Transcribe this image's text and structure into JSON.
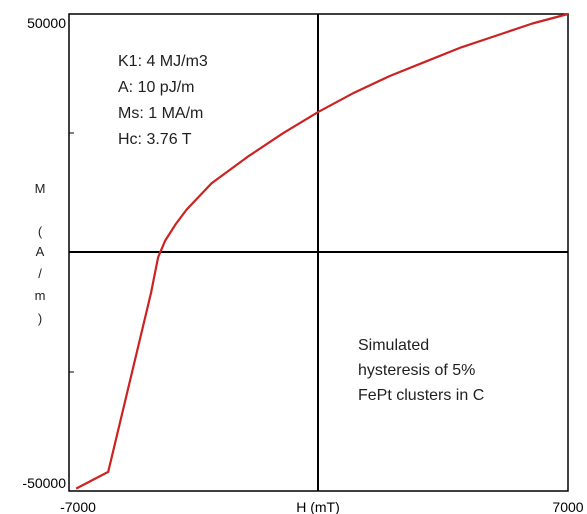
{
  "chart_data": {
    "type": "line",
    "title": "",
    "xlabel": "H (mT)",
    "ylabel_chars": [
      "M",
      "(",
      "A",
      "/",
      "m",
      ")"
    ],
    "xlim": [
      -7000,
      7000
    ],
    "ylim": [
      -50000,
      50000
    ],
    "x_ticks": [
      "-7000",
      "7000"
    ],
    "y_ticks": [
      "50000",
      "-50000"
    ],
    "grid": false,
    "parameters": [
      "K1: 4 MJ/m3",
      "A: 10 pJ/m",
      "Ms: 1 MA/m",
      "Hc: 3.76 T"
    ],
    "note": [
      "Simulated",
      "hysteresis of 5%",
      "FePt clusters in C"
    ],
    "series": [
      {
        "color": "#cc2222",
        "x": [
          -6800,
          -5900,
          -4700,
          -4500,
          -4300,
          -4000,
          -3700,
          -3000,
          -2000,
          -1000,
          0,
          1000,
          2000,
          3000,
          4000,
          5000,
          6000,
          7000
        ],
        "y": [
          -49500,
          -46000,
          -8500,
          -1000,
          2500,
          6000,
          9000,
          14500,
          20000,
          25000,
          29500,
          33500,
          37000,
          40000,
          43000,
          45500,
          48000,
          50000
        ]
      }
    ]
  }
}
